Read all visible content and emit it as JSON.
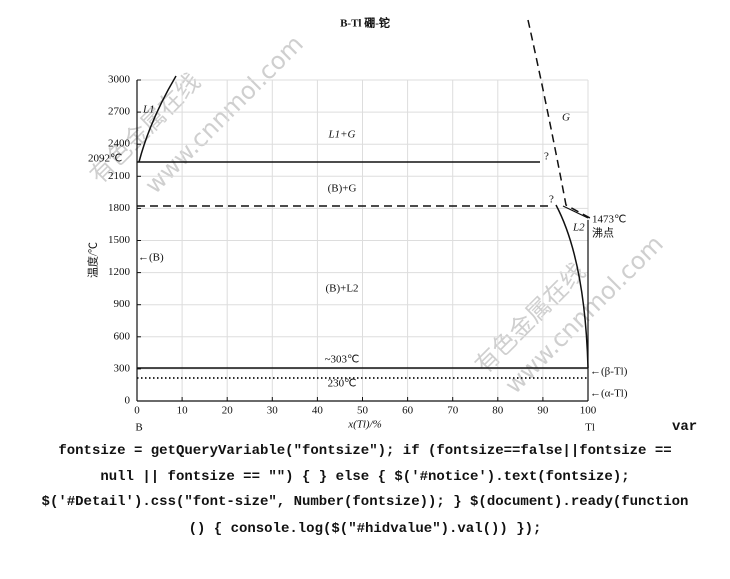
{
  "figure": {
    "title": "B-Tl  硼-铊",
    "ylabel": "温度/℃",
    "xlabel": "x(Tl)/%",
    "xticks": [
      0,
      10,
      20,
      30,
      40,
      50,
      60,
      70,
      80,
      90,
      100
    ],
    "yticks": [
      0,
      300,
      600,
      900,
      1200,
      1500,
      1800,
      2100,
      2400,
      2700,
      3000
    ],
    "labels": {
      "l1": "L1",
      "g": "G",
      "l1g": "L1+G",
      "t2092": "2092℃",
      "q1": "?",
      "bg": "(B)+G",
      "q2": "?",
      "t1473": "1473℃",
      "boil": "沸点",
      "l2": "L2",
      "b": "←(B)",
      "bl2": "(B)+L2",
      "t303": "~303℃",
      "t230": "230℃",
      "beta": "←(β-Tl)",
      "alpha": "←(α-Tl)",
      "left": "B",
      "right": "Tl"
    },
    "watermarks": [
      "有色金属在线",
      "www.cnnmol.com",
      "有色金属在线",
      "www.cnnmol.com"
    ]
  },
  "code": [
    "var",
    "fontsize = getQueryVariable(\"fontsize\"); if (fontsize==false||fontsize ==",
    "null || fontsize == \"\") { } else { $('#notice').text(fontsize);",
    "$('#Detail').css(\"font-size\", Number(fontsize)); } $(document).ready(function",
    "() { console.log($(\"#hidvalue\").val()) });"
  ]
}
